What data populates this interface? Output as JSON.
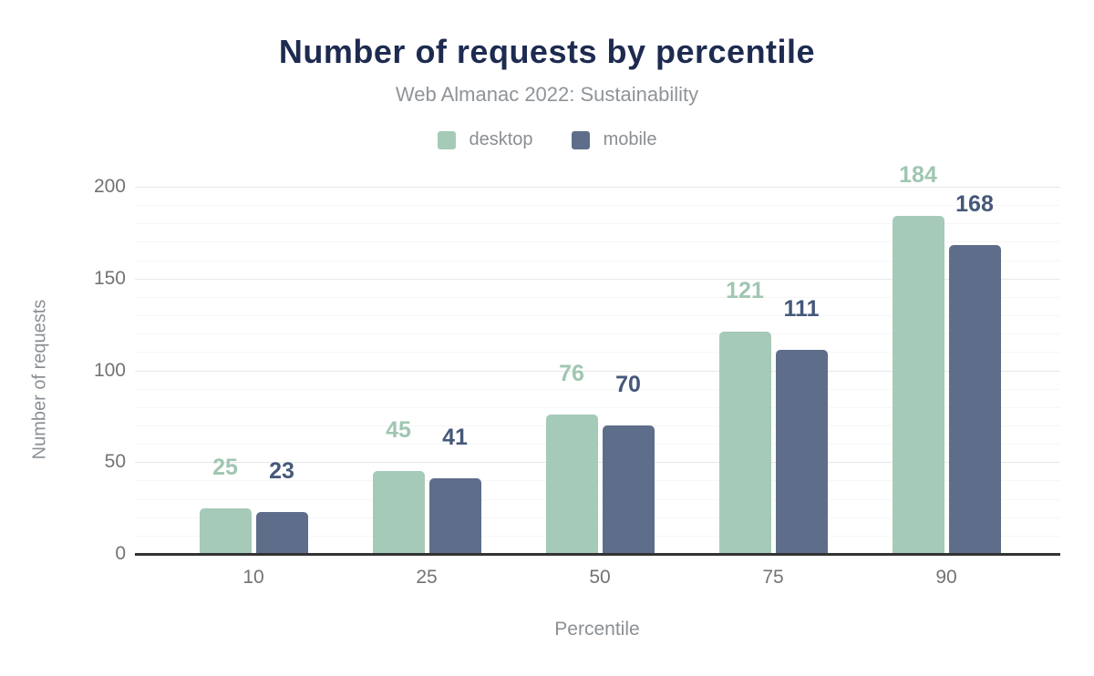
{
  "title": "Number of requests by percentile",
  "subtitle": "Web Almanac 2022: Sustainability",
  "legend": [
    {
      "label": "desktop",
      "color": "#a6cab8"
    },
    {
      "label": "mobile",
      "color": "#5e6e8a"
    }
  ],
  "colors": {
    "title": "#1e2b50",
    "axis_line": "#333333",
    "tick_text": "#737373",
    "axis_title_text": "#8a9095",
    "desktop_bar": "#a6cab8",
    "desktop_label": "#a0c6b1",
    "mobile_bar": "#5e6e8a",
    "mobile_label": "#46587a"
  },
  "chart_data": {
    "type": "bar",
    "title": "Number of requests by percentile",
    "subtitle": "Web Almanac 2022: Sustainability",
    "categories": [
      "10",
      "25",
      "50",
      "75",
      "90"
    ],
    "series": [
      {
        "name": "desktop",
        "color": "#a6cab8",
        "label_color": "#a0c6b1",
        "values": [
          25,
          45,
          76,
          121,
          184
        ]
      },
      {
        "name": "mobile",
        "color": "#5e6e8a",
        "label_color": "#46587a",
        "values": [
          23,
          41,
          70,
          111,
          168
        ]
      }
    ],
    "xlabel": "Percentile",
    "ylabel": "Number of requests",
    "ylim": [
      0,
      200
    ],
    "yticks": [
      0,
      50,
      100,
      150,
      200
    ],
    "minor_grid_step": 10,
    "grid": true,
    "legend_position": "top",
    "value_labels": true
  }
}
